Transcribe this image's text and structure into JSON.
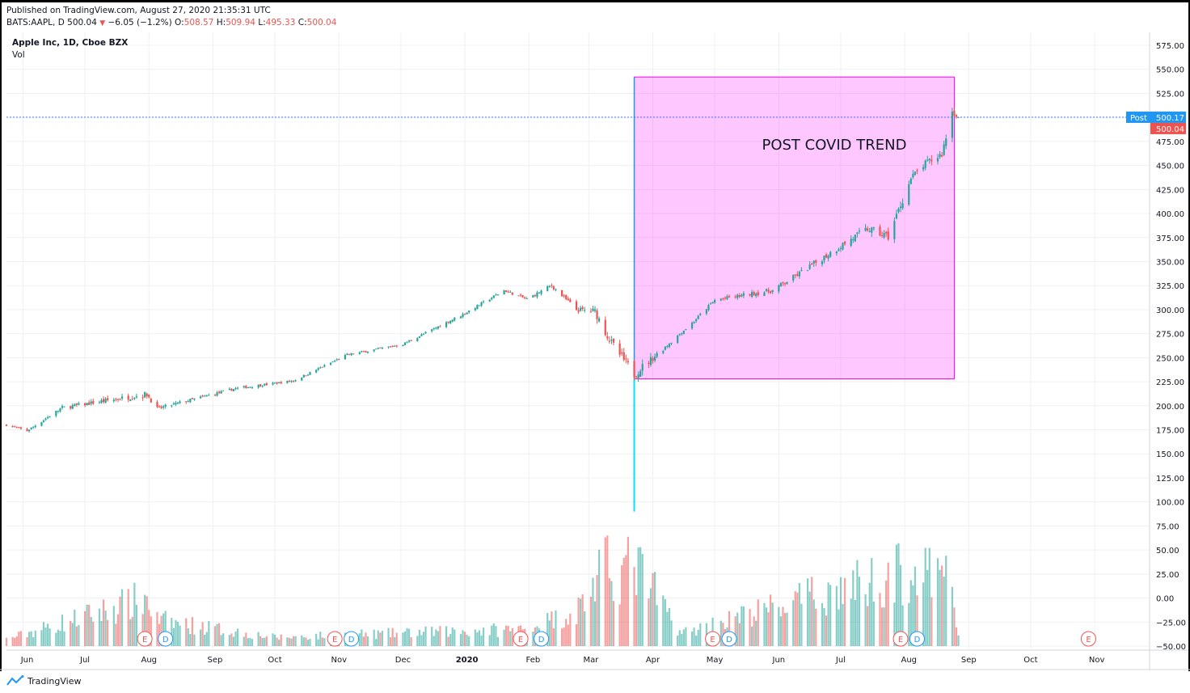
{
  "header": {
    "published": "Published on TradingView.com, August 27, 2020 21:35:31 UTC",
    "symbol": "BATS:AAPL, D",
    "last": "500.04",
    "change": "−6.05 (−1.2%)",
    "o_label": "O:",
    "o_value": "508.57",
    "h_label": "H:",
    "h_value": "509.94",
    "l_label": "L:",
    "l_value": "495.33",
    "c_label": "C:",
    "c_value": "500.04"
  },
  "legend": {
    "title": "Apple Inc, 1D, Cboe BZX",
    "vol": "Vol"
  },
  "footer": {
    "brand": "TradingView"
  },
  "colors": {
    "up": "#26a69a",
    "down": "#ef5350",
    "box": "#ff00ff",
    "line": "#2196f3",
    "cyan": "#00e5ff",
    "badge_e": "#ef5350",
    "badge_d": "#2196f3"
  },
  "chart_data": {
    "type": "candlestick",
    "title": "Apple Inc, 1D, Cboe BZX",
    "xlabel": "",
    "ylabel": "",
    "ylim": [
      -50,
      575
    ],
    "y_ticks": [
      "575.00",
      "550.00",
      "525.00",
      "500.00",
      "475.00",
      "450.00",
      "425.00",
      "400.00",
      "375.00",
      "350.00",
      "325.00",
      "300.00",
      "275.00",
      "250.00",
      "225.00",
      "200.00",
      "175.00",
      "150.00",
      "125.00",
      "100.00",
      "75.00",
      "50.00",
      "25.00",
      "0.00",
      "−25.00",
      "−50.00"
    ],
    "x_ticks": [
      "Jun",
      "Jul",
      "Aug",
      "Sep",
      "Oct",
      "Nov",
      "Dec",
      "2020",
      "Feb",
      "Mar",
      "Apr",
      "May",
      "Jun",
      "Jul",
      "Aug",
      "Sep",
      "Oct",
      "Nov"
    ],
    "price_anchors": {
      "dates": [
        "2019-05-24",
        "2019-06-03",
        "2019-06-20",
        "2019-07-31",
        "2019-08-05",
        "2019-09-12",
        "2019-10-10",
        "2019-11-05",
        "2019-12-02",
        "2019-12-31",
        "2020-01-20",
        "2020-01-31",
        "2020-02-12",
        "2020-02-24",
        "2020-03-04",
        "2020-03-12",
        "2020-03-23",
        "2020-04-01",
        "2020-04-20",
        "2020-05-01",
        "2020-05-29",
        "2020-06-12",
        "2020-06-30",
        "2020-07-14",
        "2020-07-24",
        "2020-08-04",
        "2020-08-10",
        "2020-08-19",
        "2020-08-24",
        "2020-08-27"
      ],
      "values": [
        180,
        174,
        198,
        212,
        197,
        218,
        226,
        253,
        264,
        295,
        320,
        311,
        325,
        300,
        298,
        265,
        233,
        250,
        286,
        310,
        320,
        339,
        365,
        384,
        376,
        436,
        450,
        462,
        506,
        500
      ]
    },
    "volume_anchors": {
      "dates": [
        "2019-05-24",
        "2019-07-31",
        "2019-08-05",
        "2019-10-01",
        "2020-01-31",
        "2020-02-24",
        "2020-03-09",
        "2020-03-16",
        "2020-03-23",
        "2020-04-15",
        "2020-07-31",
        "2020-08-24",
        "2020-08-27"
      ],
      "values": [
        8,
        55,
        30,
        10,
        20,
        40,
        90,
        85,
        95,
        15,
        85,
        75,
        10
      ]
    },
    "earnings_markers": [
      "2019-07-30",
      "2019-10-30",
      "2020-01-28",
      "2020-04-30",
      "2020-07-30",
      "2020-10-29"
    ],
    "dividend_markers": [
      "2019-08-09",
      "2019-11-07",
      "2020-02-07",
      "2020-05-08",
      "2020-08-07"
    ],
    "annotation": {
      "text": "POST COVID TREND",
      "from": "2020-03-23",
      "to": "2020-08-25",
      "low": 228,
      "high": 542
    },
    "vertical_line": {
      "date": "2020-03-23",
      "from_value": 90,
      "to_value": 542
    },
    "post_label": {
      "text": "Post",
      "value": "500.17"
    },
    "last_label": {
      "value": "500.04"
    }
  }
}
